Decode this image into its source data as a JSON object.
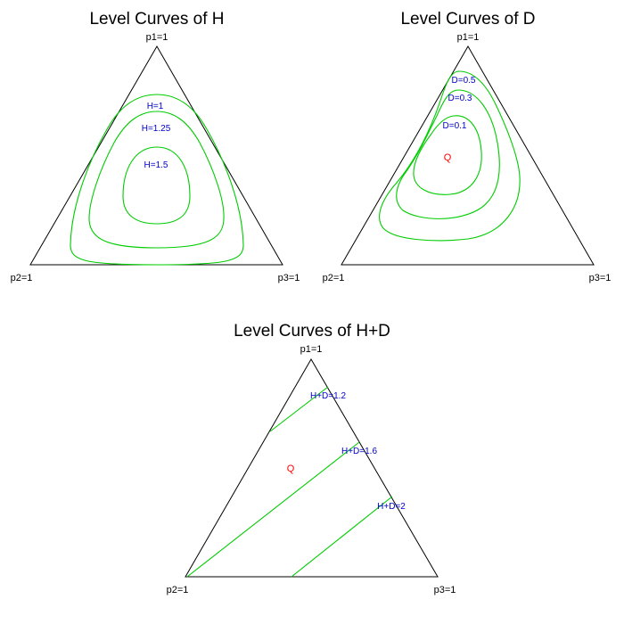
{
  "chart_data": [
    {
      "type": "line",
      "title": "Level Curves of H",
      "vertex_labels": {
        "top": "p1=1",
        "left": "p2=1",
        "right": "p3=1"
      },
      "series": [
        {
          "label": "H=1",
          "points": [
            [
              0.6,
              0.2,
              0.2
            ],
            [
              0.4,
              0.02,
              0.58
            ],
            [
              0.02,
              0.4,
              0.58
            ],
            [
              0.02,
              0.58,
              0.4
            ],
            [
              0.4,
              0.58,
              0.02
            ],
            [
              0.58,
              0.4,
              0.02
            ]
          ]
        },
        {
          "label": "H=1.25",
          "points": [
            [
              0.55,
              0.22,
              0.23
            ],
            [
              0.35,
              0.06,
              0.59
            ],
            [
              0.06,
              0.35,
              0.59
            ],
            [
              0.06,
              0.59,
              0.35
            ],
            [
              0.35,
              0.59,
              0.06
            ],
            [
              0.59,
              0.35,
              0.06
            ]
          ]
        },
        {
          "label": "H=1.5",
          "points": [
            [
              0.46,
              0.27,
              0.27
            ],
            [
              0.28,
              0.19,
              0.53
            ],
            [
              0.19,
              0.28,
              0.53
            ],
            [
              0.19,
              0.53,
              0.28
            ],
            [
              0.28,
              0.53,
              0.19
            ],
            [
              0.53,
              0.28,
              0.19
            ]
          ]
        }
      ]
    },
    {
      "type": "line",
      "title": "Level Curves of D",
      "vertex_labels": {
        "top": "p1=1",
        "left": "p2=1",
        "right": "p3=1"
      },
      "point_label": "Q",
      "point": [
        0.5,
        0.3,
        0.2
      ],
      "series": [
        {
          "label": "D=0.5",
          "points": [
            [
              0.92,
              0.04,
              0.04
            ],
            [
              0.2,
              0.02,
              0.78
            ],
            [
              0.1,
              0.7,
              0.2
            ],
            [
              0.88,
              0.02,
              0.1
            ]
          ]
        },
        {
          "label": "D=0.3",
          "points": [
            [
              0.8,
              0.1,
              0.1
            ],
            [
              0.3,
              0.06,
              0.64
            ],
            [
              0.15,
              0.6,
              0.25
            ],
            [
              0.8,
              0.08,
              0.12
            ]
          ]
        },
        {
          "label": "D=0.1",
          "points": [
            [
              0.7,
              0.18,
              0.12
            ],
            [
              0.38,
              0.2,
              0.42
            ],
            [
              0.32,
              0.42,
              0.26
            ],
            [
              0.66,
              0.2,
              0.14
            ]
          ]
        }
      ]
    },
    {
      "type": "line",
      "title": "Level Curves of H+D",
      "vertex_labels": {
        "top": "p1=1",
        "left": "p2=1",
        "right": "p3=1"
      },
      "point_label": "Q",
      "point": [
        0.5,
        0.3,
        0.2
      ],
      "series": [
        {
          "label": "H+D=1.2",
          "points": [
            [
              0.57,
              0.43,
              0.0
            ],
            [
              0.85,
              0.0,
              0.15
            ]
          ]
        },
        {
          "label": "H+D=1.6",
          "points": [
            [
              0.0,
              1.0,
              0.0
            ],
            [
              0.63,
              0.0,
              0.37
            ]
          ]
        },
        {
          "label": "H+D=2",
          "points": [
            [
              0.0,
              0.58,
              0.42
            ],
            [
              0.3,
              0.0,
              0.7
            ]
          ]
        }
      ]
    }
  ],
  "colors": {
    "curve": "#00cc00",
    "label": "#0000cc",
    "point": "#ff0000",
    "axis": "#000000"
  }
}
